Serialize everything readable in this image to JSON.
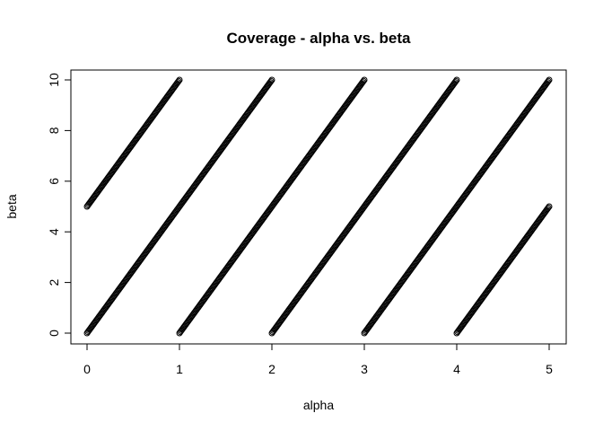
{
  "chart_data": {
    "type": "scatter",
    "title": "Coverage - alpha vs. beta",
    "xlabel": "alpha",
    "ylabel": "beta",
    "xlim": [
      0,
      5
    ],
    "ylim": [
      0,
      10
    ],
    "xticks": [
      "0",
      "1",
      "2",
      "3",
      "4",
      "5"
    ],
    "yticks": [
      "0",
      "2",
      "4",
      "6",
      "8",
      "10"
    ],
    "grid": false,
    "marker": "open-circle",
    "marker_color": "#000000",
    "series": [
      {
        "segments": [
          {
            "x": [
              0,
              1
            ],
            "y": [
              5,
              10
            ]
          },
          {
            "x": [
              0,
              2
            ],
            "y": [
              0,
              10
            ]
          },
          {
            "x": [
              1,
              3
            ],
            "y": [
              0,
              10
            ]
          },
          {
            "x": [
              2,
              4
            ],
            "y": [
              0,
              10
            ]
          },
          {
            "x": [
              3,
              5
            ],
            "y": [
              0,
              10
            ]
          },
          {
            "x": [
              4,
              5
            ],
            "y": [
              0,
              5
            ]
          }
        ]
      }
    ]
  }
}
